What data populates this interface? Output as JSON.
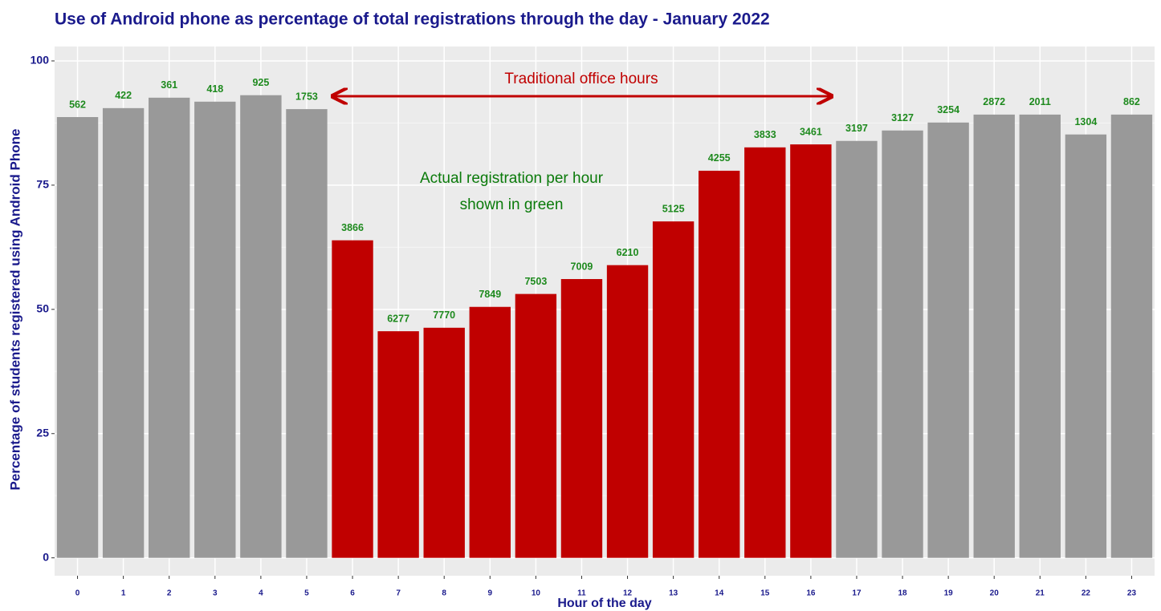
{
  "chart_data": {
    "type": "bar",
    "title": "Use of Android phone as percentage of total registrations through the day - January 2022",
    "x_label": "Hour of the day",
    "y_label": "Percentage of students registered using Android Phone",
    "categories": [
      0,
      1,
      2,
      3,
      4,
      5,
      6,
      7,
      8,
      9,
      10,
      11,
      12,
      13,
      14,
      15,
      16,
      17,
      18,
      19,
      20,
      21,
      22,
      23
    ],
    "values": [
      88.7,
      90.5,
      92.6,
      91.8,
      93.1,
      90.3,
      63.9,
      45.6,
      46.3,
      50.5,
      53.1,
      56.1,
      58.9,
      67.7,
      77.9,
      82.6,
      83.2,
      83.9,
      86.0,
      87.6,
      89.2,
      89.2,
      85.2,
      89.2
    ],
    "colors": [
      "#999999",
      "#999999",
      "#999999",
      "#999999",
      "#999999",
      "#999999",
      "#c00000",
      "#c00000",
      "#c00000",
      "#c00000",
      "#c00000",
      "#c00000",
      "#c00000",
      "#c00000",
      "#c00000",
      "#c00000",
      "#c00000",
      "#999999",
      "#999999",
      "#999999",
      "#999999",
      "#999999",
      "#999999",
      "#999999"
    ],
    "registrations": [
      562,
      422,
      361,
      418,
      925,
      1753,
      3866,
      6277,
      7770,
      7849,
      7503,
      7009,
      6210,
      5125,
      4255,
      3833,
      3461,
      3197,
      3127,
      3254,
      2872,
      2011,
      1304,
      862
    ],
    "annotations": [
      "Traditional office hours",
      "Actual registration per hour",
      "shown in green"
    ],
    "ylim": [
      -3.6,
      102.9
    ],
    "yticks": [
      0,
      25,
      50,
      75,
      100
    ],
    "grid": true
  }
}
